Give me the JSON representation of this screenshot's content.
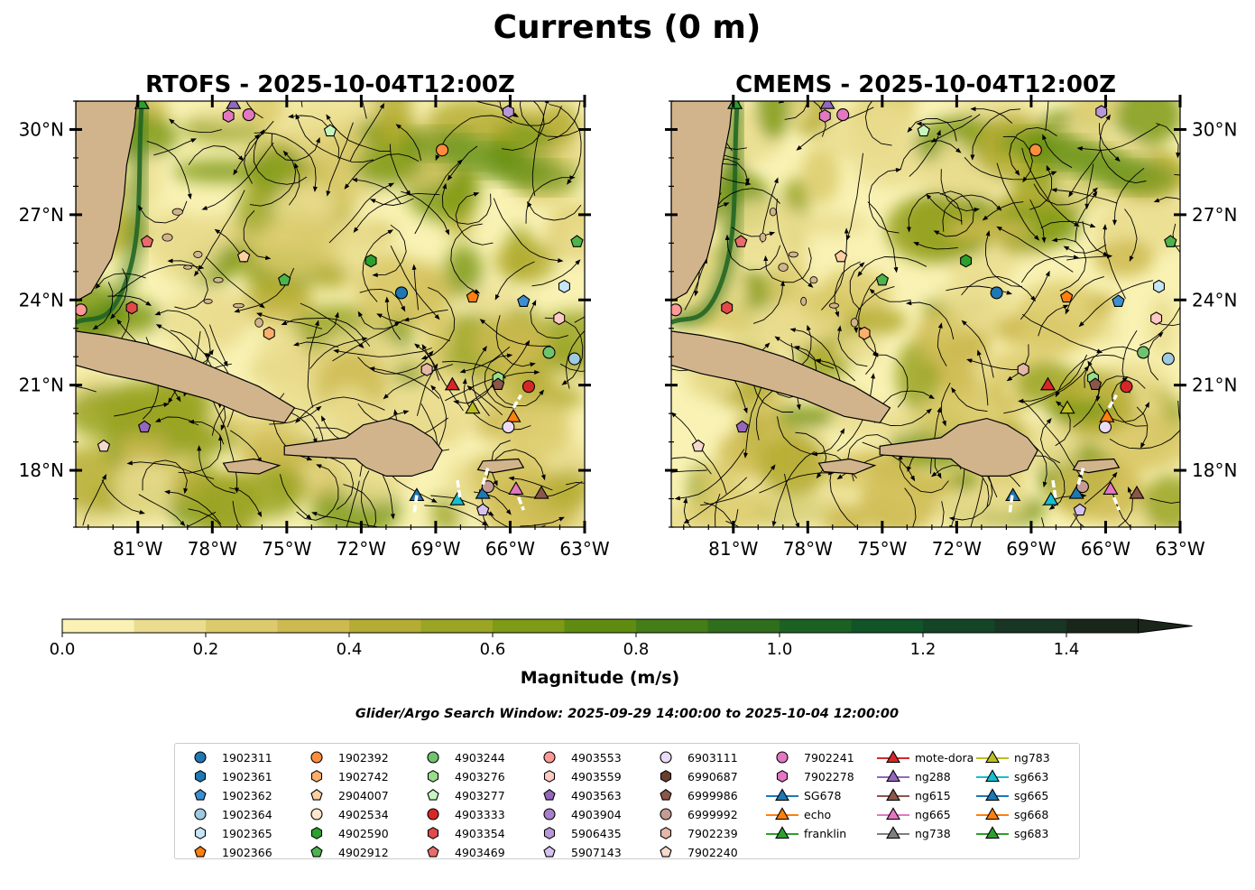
{
  "figure": {
    "suptitle": "Currents (0 m)",
    "window_note": "Glider/Argo Search Window: 2025-09-29 14:00:00 to 2025-10-04 12:00:00",
    "land_color": "#d2b48c",
    "colormap": [
      "#f9f2b4",
      "#eadd8f",
      "#dccb6d",
      "#cdba50",
      "#b5ad33",
      "#9aa524",
      "#7f9a14",
      "#5f8c10",
      "#457d18",
      "#2f6e1d",
      "#1c6123",
      "#105428",
      "#144526",
      "#193523",
      "#1b261b"
    ]
  },
  "chart_data": [
    {
      "type": "streamplot",
      "title": "RTOFS - 2025-10-04T12:00Z",
      "xlim": [
        -83.5,
        -63
      ],
      "ylim": [
        16,
        31
      ],
      "xticks": [
        -81,
        -78,
        -75,
        -72,
        -69,
        -66,
        -63
      ],
      "xtick_labels": [
        "81°W",
        "78°W",
        "75°W",
        "72°W",
        "69°W",
        "66°W",
        "63°W"
      ],
      "yticks": [
        18,
        21,
        24,
        27,
        30
      ],
      "ytick_labels": [
        "18°N",
        "21°N",
        "24°N",
        "27°N",
        "30°N"
      ],
      "ytick_side": "left"
    },
    {
      "type": "streamplot",
      "title": "CMEMS - 2025-10-04T12:00Z",
      "xlim": [
        -83.5,
        -63
      ],
      "ylim": [
        16,
        31
      ],
      "xticks": [
        -81,
        -78,
        -75,
        -72,
        -69,
        -66,
        -63
      ],
      "xtick_labels": [
        "81°W",
        "78°W",
        "75°W",
        "72°W",
        "69°W",
        "66°W",
        "63°W"
      ],
      "yticks": [
        18,
        21,
        24,
        27,
        30
      ],
      "ytick_labels": [
        "18°N",
        "21°N",
        "24°N",
        "27°N",
        "30°N"
      ],
      "ytick_side": "right"
    }
  ],
  "colorbar": {
    "label": "Magnitude (m/s)",
    "vmin": 0.0,
    "vmax": 1.5,
    "step": 0.1,
    "ticks": [
      0.0,
      0.2,
      0.4,
      0.6,
      0.8,
      1.0,
      1.2,
      1.4
    ],
    "tick_labels": [
      "0.0",
      "0.2",
      "0.4",
      "0.6",
      "0.8",
      "1.0",
      "1.2",
      "1.4"
    ],
    "extend": "max"
  },
  "legend": {
    "columns": [
      [
        {
          "label": "1902311",
          "marker": "circle",
          "color": "#1f77b4"
        },
        {
          "label": "1902361",
          "marker": "hexagon",
          "color": "#1f77b4"
        },
        {
          "label": "1902362",
          "marker": "pentagon",
          "color": "#3d8fd1"
        },
        {
          "label": "1902364",
          "marker": "circle",
          "color": "#9ecae1"
        },
        {
          "label": "1902365",
          "marker": "hexagon",
          "color": "#c6e6f7"
        },
        {
          "label": "1902366",
          "marker": "pentagon",
          "color": "#ff7f0e"
        }
      ],
      [
        {
          "label": "1902392",
          "marker": "circle",
          "color": "#fd8d3c"
        },
        {
          "label": "1902742",
          "marker": "hexagon",
          "color": "#fdae6b"
        },
        {
          "label": "2904007",
          "marker": "pentagon",
          "color": "#fdd0a2"
        },
        {
          "label": "4902534",
          "marker": "circle",
          "color": "#fee6ce"
        },
        {
          "label": "4902590",
          "marker": "hexagon",
          "color": "#2ca02c"
        },
        {
          "label": "4902912",
          "marker": "pentagon",
          "color": "#4db34d"
        }
      ],
      [
        {
          "label": "4903244",
          "marker": "circle",
          "color": "#6fc36f"
        },
        {
          "label": "4903276",
          "marker": "hexagon",
          "color": "#98df8a"
        },
        {
          "label": "4903277",
          "marker": "pentagon",
          "color": "#c7f5c0"
        },
        {
          "label": "4903333",
          "marker": "circle",
          "color": "#d62728"
        },
        {
          "label": "4903354",
          "marker": "hexagon",
          "color": "#e04a4a"
        },
        {
          "label": "4903469",
          "marker": "pentagon",
          "color": "#ea6b6b"
        }
      ],
      [
        {
          "label": "4903553",
          "marker": "circle",
          "color": "#ff9896"
        },
        {
          "label": "4903559",
          "marker": "hexagon",
          "color": "#ffc9c6"
        },
        {
          "label": "4903563",
          "marker": "pentagon",
          "color": "#9467bd"
        },
        {
          "label": "4903904",
          "marker": "circle",
          "color": "#a77fcc"
        },
        {
          "label": "5906435",
          "marker": "hexagon",
          "color": "#b897d9"
        },
        {
          "label": "5907143",
          "marker": "pentagon",
          "color": "#d6c2ef"
        }
      ],
      [
        {
          "label": "6903111",
          "marker": "circle",
          "color": "#eadcf7"
        },
        {
          "label": "6990687",
          "marker": "hexagon",
          "color": "#6b3d2e"
        },
        {
          "label": "6999986",
          "marker": "pentagon",
          "color": "#8c564b"
        },
        {
          "label": "6999992",
          "marker": "circle",
          "color": "#c49c94"
        },
        {
          "label": "7902239",
          "marker": "hexagon",
          "color": "#e6b7a8"
        },
        {
          "label": "7902240",
          "marker": "pentagon",
          "color": "#f6d8cc"
        }
      ],
      [
        {
          "label": "7902241",
          "marker": "circle",
          "color": "#e377c2"
        },
        {
          "label": "7902278",
          "marker": "hexagon",
          "color": "#e377c2"
        },
        {
          "label": "SG678",
          "marker": "triangle",
          "color": "#1f77b4"
        },
        {
          "label": "echo",
          "marker": "triangle",
          "color": "#ff7f0e"
        },
        {
          "label": "franklin",
          "marker": "triangle",
          "color": "#2ca02c"
        }
      ],
      [
        {
          "label": "mote-dora",
          "marker": "triangle",
          "color": "#d62728"
        },
        {
          "label": "ng288",
          "marker": "triangle",
          "color": "#9467bd"
        },
        {
          "label": "ng615",
          "marker": "triangle",
          "color": "#8c564b"
        },
        {
          "label": "ng665",
          "marker": "triangle",
          "color": "#e377c2"
        },
        {
          "label": "ng738",
          "marker": "triangle",
          "color": "#7f7f7f"
        }
      ],
      [
        {
          "label": "ng783",
          "marker": "triangle",
          "color": "#bcbd22"
        },
        {
          "label": "sg663",
          "marker": "triangle",
          "color": "#17becf"
        },
        {
          "label": "sg665",
          "marker": "triangle",
          "color": "#1f77b4"
        },
        {
          "label": "sg668",
          "marker": "triangle",
          "color": "#ff7f0e"
        },
        {
          "label": "sg683",
          "marker": "triangle",
          "color": "#2ca02c"
        }
      ]
    ]
  }
}
